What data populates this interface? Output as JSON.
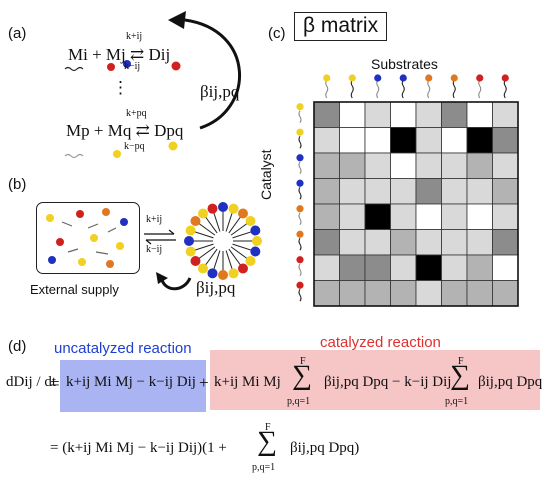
{
  "panels": {
    "a": "(a)",
    "b": "(b)",
    "c": "(c)",
    "d": "(d)"
  },
  "reaction_a": {
    "eq1": "Mi + Mj ⇄ Dij",
    "k_forward_1": "k+ij",
    "k_back_1": "k−ij",
    "dots": "⋮",
    "eq2": "Mp + Mq ⇄ Dpq",
    "k_forward_2": "k+pq",
    "k_back_2": "k−pq",
    "beta_arrow_label": "βij,pq"
  },
  "panel_b": {
    "external_supply": "External supply",
    "k_forward": "k+ij",
    "k_back": "k−ij",
    "beta_label": "βij,pq"
  },
  "matrix": {
    "title": "β matrix",
    "top_label": "Substrates",
    "side_label": "Catalyst",
    "colors": [
      "#ffffff",
      "#d9d9d9",
      "#b3b3b3",
      "#8c8c8c",
      "#000000"
    ],
    "grid": [
      [
        3,
        0,
        1,
        0,
        1,
        3,
        0,
        1
      ],
      [
        1,
        0,
        0,
        4,
        1,
        0,
        4,
        3
      ],
      [
        2,
        2,
        1,
        0,
        1,
        1,
        2,
        1
      ],
      [
        2,
        1,
        1,
        1,
        3,
        1,
        1,
        2
      ],
      [
        2,
        1,
        4,
        1,
        0,
        1,
        0,
        1
      ],
      [
        3,
        1,
        1,
        2,
        1,
        1,
        1,
        3
      ],
      [
        1,
        3,
        3,
        1,
        4,
        1,
        2,
        0
      ],
      [
        2,
        2,
        2,
        2,
        1,
        2,
        2,
        2
      ]
    ],
    "bead_colors_top": [
      "#f0d020",
      "#f0d020",
      "#2030c0",
      "#2030c0",
      "#e07820",
      "#e07820",
      "#d02020",
      "#d02020"
    ],
    "bead_colors_side": [
      "#f0d020",
      "#f0d020",
      "#2030c0",
      "#2030c0",
      "#e07820",
      "#e07820",
      "#d02020",
      "#d02020"
    ]
  },
  "panel_d": {
    "uncatalyzed": "uncatalyzed reaction",
    "catalyzed": "catalyzed reaction",
    "uncatalyzed_color": "#1f3fd0",
    "catalyzed_color": "#e03030",
    "lhs": "dDij / dt",
    "term1": "k+ij Mi Mj − k−ij Dij",
    "plus1": "+",
    "term2": "k+ij Mi Mj",
    "sum_top": "F",
    "sum_bottom": "p,q=1",
    "term3": "βij,pq Dpq − k−ij Dij",
    "term4": "βij,pq Dpq",
    "line2_a": "= (k+ij Mi Mj − k−ij Dij)(1 +",
    "line2_b": "βij,pq Dpq)"
  }
}
